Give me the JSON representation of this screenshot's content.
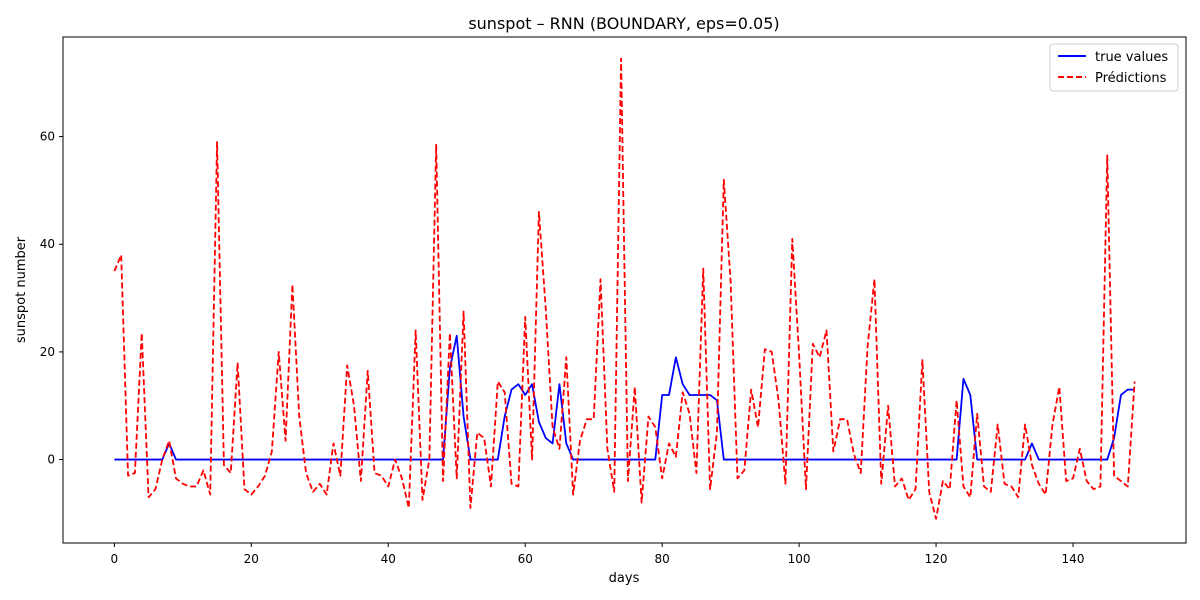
{
  "chart_data": {
    "type": "line",
    "title": "sunspot – RNN (BOUNDARY, eps=0.05)",
    "xlabel": "days",
    "ylabel": "sunspot number",
    "xlim": [
      -7.5,
      156.5
    ],
    "ylim": [
      -15.5,
      78.5
    ],
    "xticks": [
      0,
      20,
      40,
      60,
      80,
      100,
      120,
      140
    ],
    "yticks": [
      0,
      20,
      40,
      60
    ],
    "grid": false,
    "legend_position": "top-right",
    "series": [
      {
        "name": "true values",
        "color": "#0000ff",
        "style": "solid",
        "values": [
          0,
          0,
          0,
          0,
          0,
          0,
          0,
          0,
          3,
          0,
          0,
          0,
          0,
          0,
          0,
          0,
          0,
          0,
          0,
          0,
          0,
          0,
          0,
          0,
          0,
          0,
          0,
          0,
          0,
          0,
          0,
          0,
          0,
          0,
          0,
          0,
          0,
          0,
          0,
          0,
          0,
          0,
          0,
          0,
          0,
          0,
          0,
          0,
          0,
          17,
          23,
          8,
          0,
          0,
          0,
          0,
          0,
          8,
          13,
          14,
          12,
          14,
          7,
          4,
          3,
          14,
          3,
          0,
          0,
          0,
          0,
          0,
          0,
          0,
          0,
          0,
          0,
          0,
          0,
          0,
          12,
          12,
          19,
          14,
          12,
          12,
          12,
          12,
          11,
          0,
          0,
          0,
          0,
          0,
          0,
          0,
          0,
          0,
          0,
          0,
          0,
          0,
          0,
          0,
          0,
          0,
          0,
          0,
          0,
          0,
          0,
          0,
          0,
          0,
          0,
          0,
          0,
          0,
          0,
          0,
          0,
          0,
          0,
          0,
          15,
          12,
          0,
          0,
          0,
          0,
          0,
          0,
          0,
          0,
          3,
          0,
          0,
          0,
          0,
          0,
          0,
          0,
          0,
          0,
          0,
          0,
          4,
          12,
          13,
          13
        ]
      },
      {
        "name": "Prédictions",
        "color": "#ff0000",
        "style": "dashed",
        "values": [
          35,
          38,
          -3,
          -2.5,
          23.5,
          -7,
          -5.5,
          0,
          3.5,
          -3.5,
          -4.5,
          -5,
          -5,
          -2,
          -6.5,
          59,
          -1,
          -2.5,
          18,
          -5.5,
          -6.5,
          -5,
          -3,
          1.5,
          20,
          3.5,
          32.5,
          8,
          -2.5,
          -6,
          -4.5,
          -6.5,
          3,
          -3,
          17.5,
          10,
          -4,
          16.5,
          -2.5,
          -3,
          -5,
          0,
          -3.5,
          -9,
          24,
          -7.5,
          0,
          58.5,
          -4,
          23.5,
          -3.5,
          27.5,
          -9,
          5,
          4,
          -5,
          14.5,
          12.5,
          -4.5,
          -5,
          26.5,
          0,
          46,
          28,
          6,
          2,
          19,
          -6.5,
          3.5,
          7.5,
          7.5,
          33.5,
          2,
          -6,
          74.5,
          -4,
          13.5,
          -8,
          8,
          6,
          -3.5,
          3,
          0.5,
          12.5,
          8.5,
          -2.5,
          35.5,
          -5.5,
          5,
          52,
          33,
          -3.5,
          -2,
          13,
          6,
          20.5,
          20,
          11,
          -4.5,
          41,
          19.5,
          -5.5,
          21.5,
          19,
          24,
          1.5,
          7.5,
          7.5,
          1,
          -2.5,
          21,
          33.5,
          -4.5,
          10,
          -5,
          -3.5,
          -7.5,
          -5.5,
          18.5,
          -6,
          -11,
          -4,
          -5.5,
          11,
          -5,
          -7,
          8.5,
          -5,
          -6,
          6.5,
          -4.5,
          -5,
          -7,
          6.5,
          -1,
          -4.5,
          -6.5,
          6.5,
          13.5,
          -4,
          -3.5,
          2,
          -4,
          -5.5,
          -5,
          56.5,
          -3,
          -4,
          -5,
          14.5
        ]
      }
    ]
  }
}
